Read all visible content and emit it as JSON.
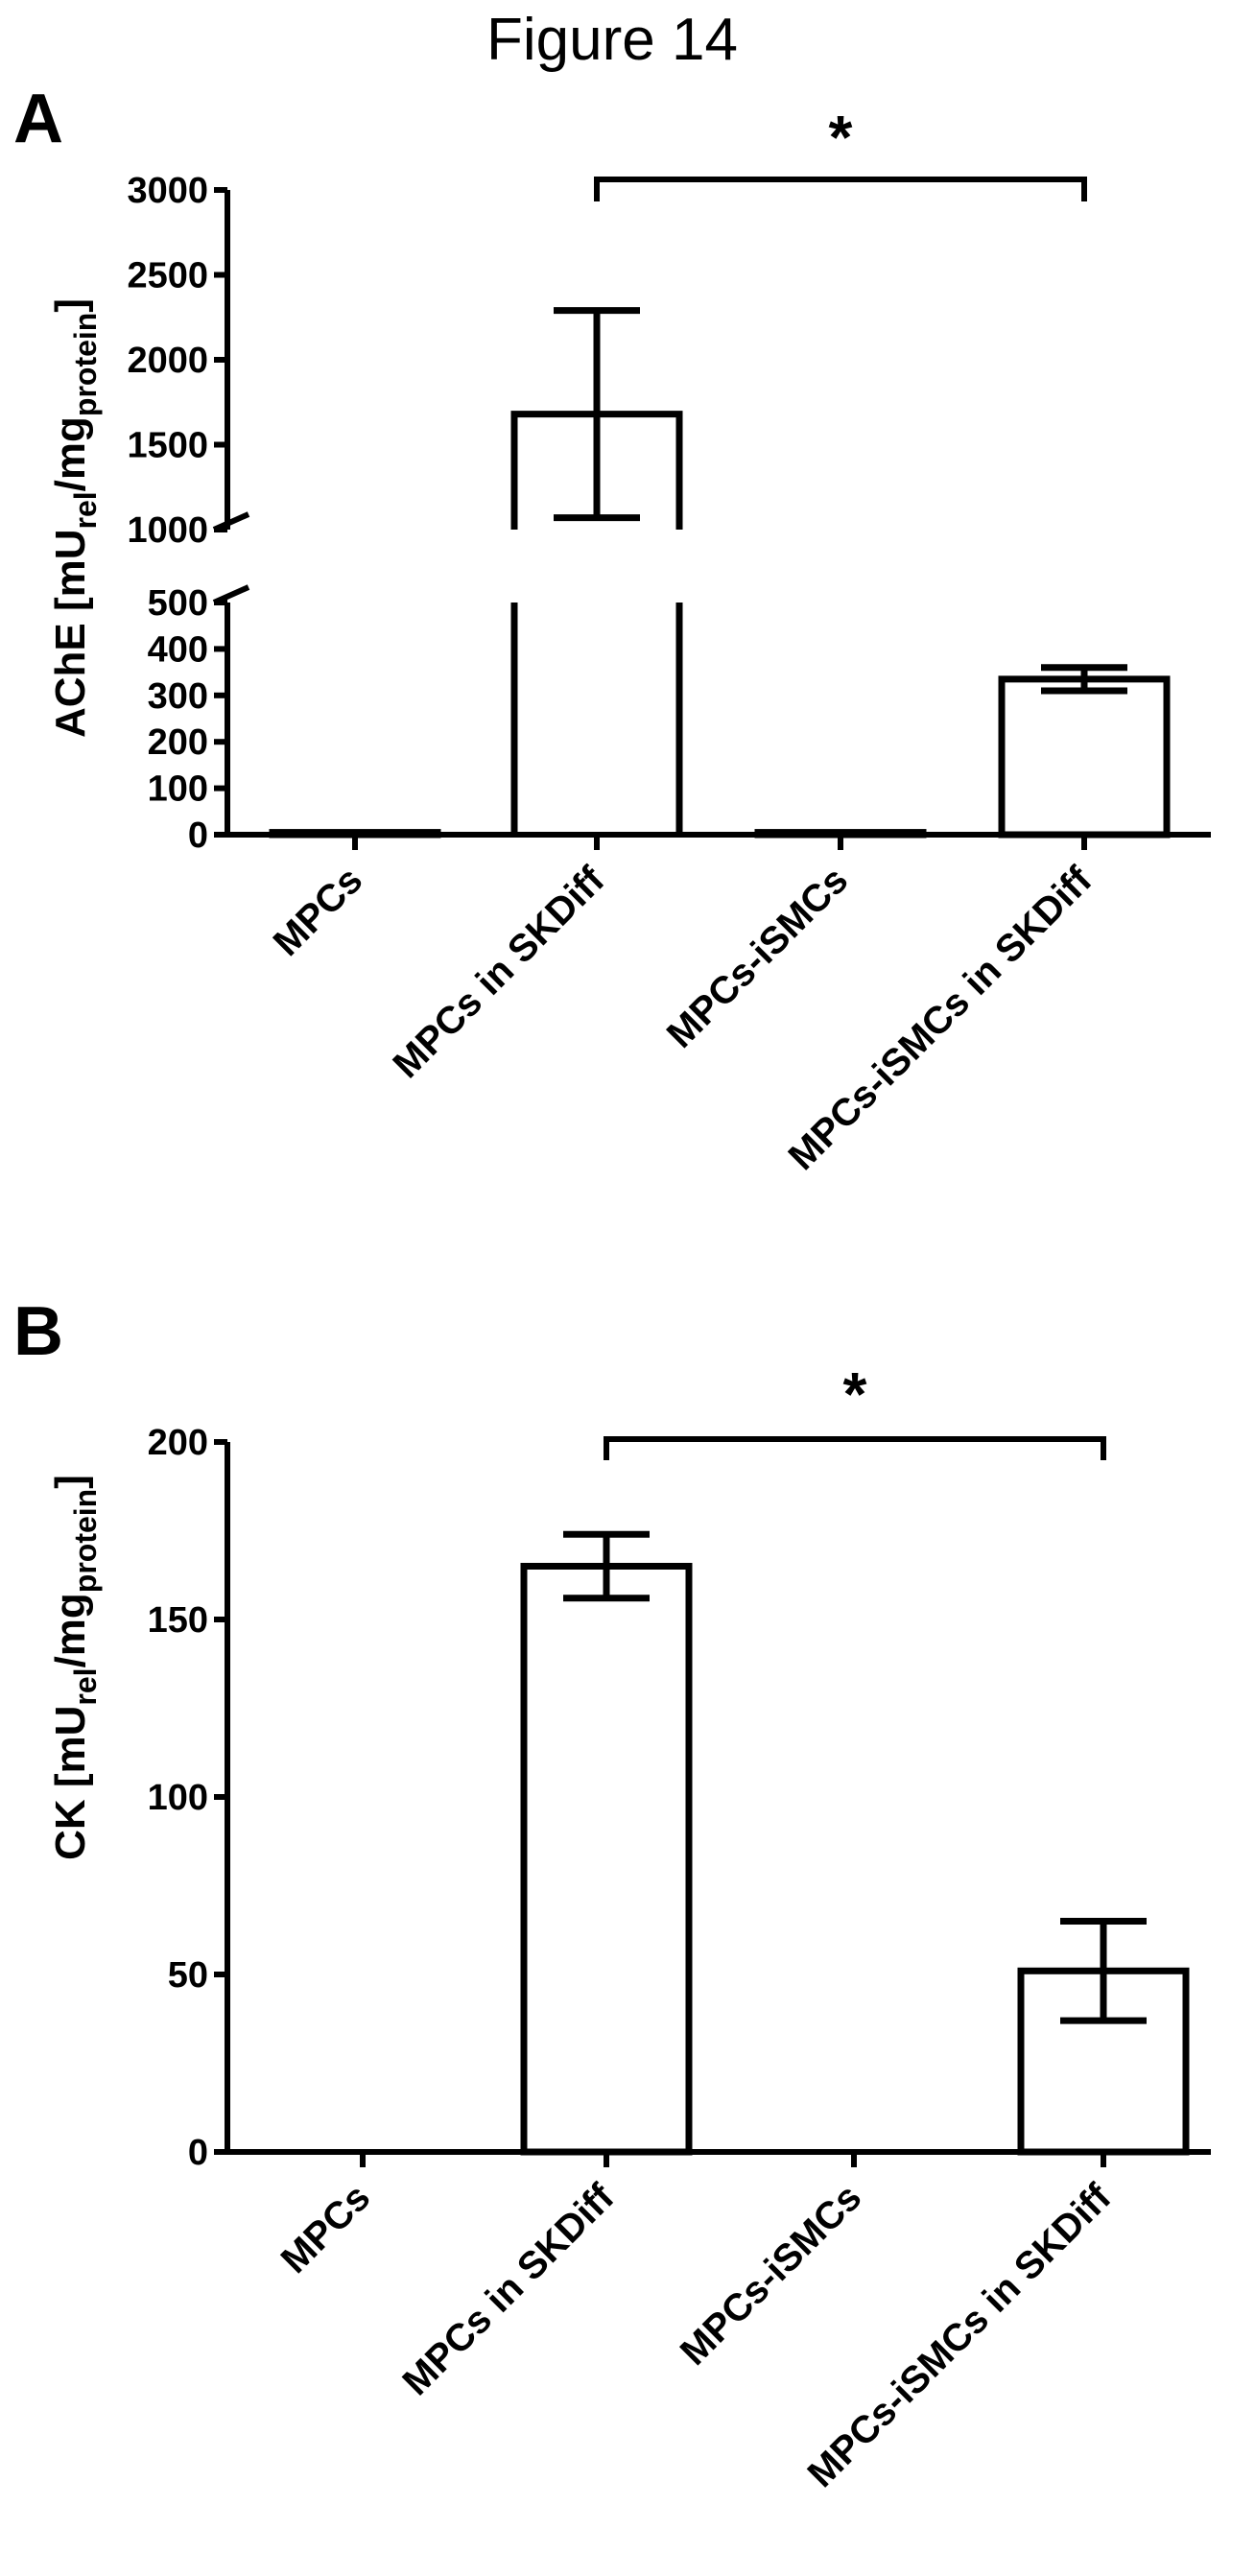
{
  "figure": {
    "title": "Figure 14"
  },
  "chart_data": [
    {
      "panel": "A",
      "type": "bar",
      "categories": [
        "MPCs",
        "MPCs in SKDiff",
        "MPCs-iSMCs",
        "MPCs-iSMCs in SKDiff"
      ],
      "values": [
        5,
        1680,
        5,
        335
      ],
      "errors": [
        0,
        610,
        0,
        25
      ],
      "ylabel_main": "AChE [mU",
      "ylabel_sub1": "rel",
      "ylabel_mid": "/mg",
      "ylabel_sub2": "protein",
      "ylabel_end": "]",
      "broken_axis": true,
      "lower_segment_ylim": [
        0,
        500
      ],
      "upper_segment_ylim": [
        1000,
        3000
      ],
      "yticks_lower": [
        "0",
        "100",
        "200",
        "300",
        "400",
        "500"
      ],
      "yticks_upper": [
        "1000",
        "1500",
        "2000",
        "2500",
        "3000"
      ],
      "significance": {
        "between": [
          1,
          3
        ],
        "label": "*"
      }
    },
    {
      "panel": "B",
      "type": "bar",
      "categories": [
        "MPCs",
        "MPCs in SKDiff",
        "MPCs-iSMCs",
        "MPCs-iSMCs in SKDiff"
      ],
      "values": [
        0,
        165,
        0,
        51
      ],
      "errors": [
        0,
        9,
        0,
        14
      ],
      "ylabel_main": "CK [mU",
      "ylabel_sub1": "rel",
      "ylabel_mid": "/mg",
      "ylabel_sub2": "protein",
      "ylabel_end": "]",
      "ylim": [
        0,
        200
      ],
      "yticks": [
        "0",
        "50",
        "100",
        "150",
        "200"
      ],
      "significance": {
        "between": [
          1,
          3
        ],
        "label": "*"
      }
    }
  ]
}
